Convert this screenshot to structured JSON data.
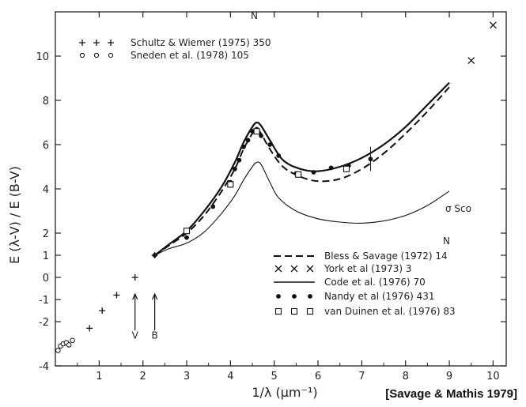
{
  "chart_data": {
    "type": "line",
    "xlabel": "1/λ (μm⁻¹)",
    "ylabel": "E (λ-V) / E (B-V)",
    "xlim": [
      0,
      10.3
    ],
    "ylim": [
      -4,
      12
    ],
    "x_ticks": [
      1,
      2,
      3,
      4,
      5,
      6,
      7,
      8,
      9,
      10
    ],
    "y_ticks": [
      -4,
      -2,
      -1,
      0,
      1,
      2,
      4,
      6,
      8,
      10
    ],
    "grid": false,
    "citation": "[Savage & Mathis 1979]",
    "legend_top": {
      "header": "N",
      "entries": [
        {
          "name": "Schultz & Wiemer (1975) 350",
          "marker": "+"
        },
        {
          "name": "Sneden et al. (1978) 105",
          "marker": "o"
        }
      ]
    },
    "legend_bottom": {
      "header": "N",
      "entries": [
        {
          "name": "Bless & Savage (1972) 14",
          "marker": "dashed"
        },
        {
          "name": "York et al (1973) 3",
          "marker": "x"
        },
        {
          "name": "Code et al. (1976) 70",
          "marker": "solid"
        },
        {
          "name": "Nandy et al (1976) 431",
          "marker": "filled-circle"
        },
        {
          "name": "van Duinen et al. (1976) 83",
          "marker": "open-square"
        }
      ]
    },
    "annotations": [
      {
        "text": "V",
        "x": 1.82
      },
      {
        "text": "B",
        "x": 2.27
      },
      {
        "text": "σ Sco"
      }
    ],
    "series": [
      {
        "name": "Schultz & Wiemer (1975) 350",
        "kind": "plus",
        "x": [
          0.78,
          1.07,
          1.4,
          1.82,
          2.27
        ],
        "y": [
          -2.3,
          -1.5,
          -0.8,
          0.0,
          1.0
        ]
      },
      {
        "name": "Sneden et al. (1978) 105",
        "kind": "circle",
        "x": [
          0.06,
          0.12,
          0.18,
          0.25,
          0.31,
          0.39
        ],
        "y": [
          -3.3,
          -3.1,
          -3.0,
          -2.95,
          -3.05,
          -2.85
        ]
      },
      {
        "name": "Bless & Savage (1972) 14",
        "kind": "dashed",
        "x": [
          2.27,
          2.6,
          3.0,
          3.4,
          3.8,
          4.1,
          4.3,
          4.5,
          4.6,
          4.7,
          4.9,
          5.2,
          5.6,
          6.0,
          6.5,
          7.0,
          7.5,
          8.0,
          8.5,
          9.0
        ],
        "y": [
          1.0,
          1.45,
          2.0,
          2.8,
          3.9,
          4.9,
          5.8,
          6.5,
          6.7,
          6.5,
          5.8,
          5.0,
          4.55,
          4.35,
          4.45,
          4.9,
          5.6,
          6.5,
          7.5,
          8.6
        ]
      },
      {
        "name": "Code et al. (1976) 70",
        "kind": "solid",
        "x": [
          2.27,
          2.6,
          3.0,
          3.4,
          3.8,
          4.1,
          4.3,
          4.5,
          4.6,
          4.7,
          4.9,
          5.2,
          5.6,
          6.0,
          6.5,
          7.0,
          7.5,
          8.0,
          8.5,
          9.0
        ],
        "y": [
          1.0,
          1.5,
          2.1,
          3.0,
          4.1,
          5.2,
          6.1,
          6.8,
          7.0,
          6.85,
          6.2,
          5.3,
          4.9,
          4.8,
          5.0,
          5.4,
          6.0,
          6.8,
          7.8,
          8.8
        ]
      },
      {
        "name": "σ Sco",
        "kind": "thin",
        "x": [
          2.27,
          2.6,
          3.0,
          3.4,
          3.8,
          4.1,
          4.3,
          4.5,
          4.6,
          4.7,
          4.9,
          5.1,
          5.5,
          6.0,
          6.5,
          7.0,
          7.5,
          8.0,
          8.5,
          9.0
        ],
        "y": [
          1.0,
          1.3,
          1.55,
          2.05,
          2.9,
          3.7,
          4.4,
          5.0,
          5.2,
          5.1,
          4.3,
          3.6,
          3.0,
          2.65,
          2.5,
          2.45,
          2.55,
          2.8,
          3.25,
          3.9
        ]
      },
      {
        "name": "Nandy et al (1976) 431",
        "kind": "dot",
        "x": [
          2.27,
          3.0,
          3.6,
          4.0,
          4.1,
          4.2,
          4.3,
          4.4,
          4.5,
          4.6,
          4.7,
          4.9,
          5.1,
          5.5,
          5.9,
          6.3,
          6.7,
          7.2
        ],
        "y": [
          1.0,
          1.8,
          3.2,
          4.3,
          4.9,
          5.3,
          5.9,
          6.2,
          6.6,
          6.7,
          6.4,
          6.0,
          5.5,
          4.7,
          4.75,
          4.95,
          5.05,
          5.35
        ]
      },
      {
        "name": "York et al (1973) 3",
        "kind": "cross",
        "x": [
          9.5,
          10.0
        ],
        "y": [
          9.8,
          11.4
        ]
      },
      {
        "name": "van Duinen et al. (1976) 83",
        "kind": "square",
        "x": [
          3.0,
          4.0,
          4.6,
          5.55,
          6.65
        ],
        "y": [
          2.1,
          4.2,
          6.6,
          4.65,
          4.9
        ]
      }
    ]
  }
}
